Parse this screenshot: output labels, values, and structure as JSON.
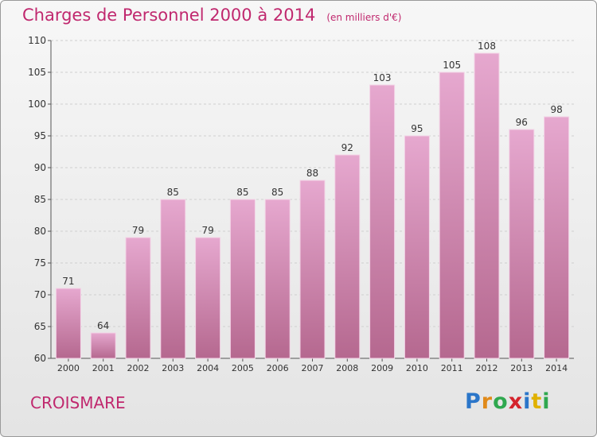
{
  "header": {
    "title": "Charges de Personnel 2000 à 2014",
    "subtitle": "(en milliers d'€)"
  },
  "footer": {
    "commune": "CROISMARE",
    "logo_text": "Proxiti"
  },
  "colors": {
    "title": "#c0286e",
    "bar_top": "#e6a8cf",
    "bar_bottom": "#b5688f",
    "background_top": "#f7f7f7",
    "background_bottom": "#e4e4e4"
  },
  "chart_data": {
    "type": "bar",
    "title": "Charges de Personnel 2000 à 2014",
    "subtitle": "(en milliers d'€)",
    "categories": [
      "2000",
      "2001",
      "2002",
      "2003",
      "2004",
      "2005",
      "2006",
      "2007",
      "2008",
      "2009",
      "2010",
      "2011",
      "2012",
      "2013",
      "2014"
    ],
    "values": [
      71,
      64,
      79,
      85,
      79,
      85,
      85,
      88,
      92,
      103,
      95,
      105,
      108,
      96,
      98
    ],
    "ylim": [
      60,
      110
    ],
    "yticks": [
      60,
      65,
      70,
      75,
      80,
      85,
      90,
      95,
      100,
      105,
      110
    ],
    "grid": true,
    "data_labels": true
  }
}
